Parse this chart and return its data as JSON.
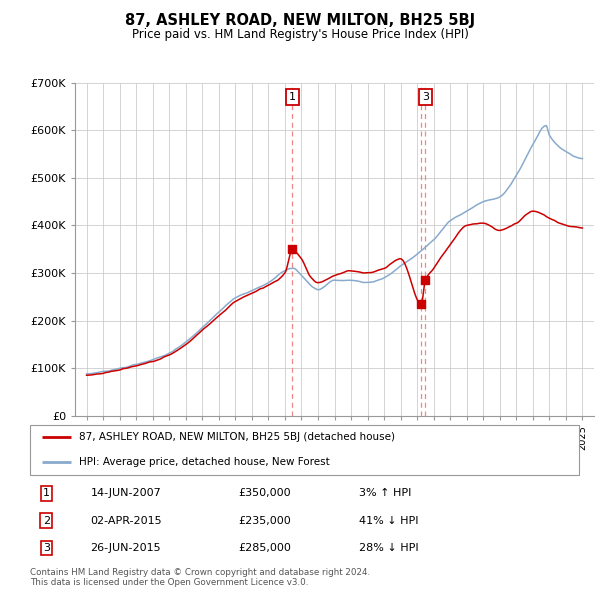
{
  "title": "87, ASHLEY ROAD, NEW MILTON, BH25 5BJ",
  "subtitle": "Price paid vs. HM Land Registry's House Price Index (HPI)",
  "ylim": [
    0,
    700000
  ],
  "ytick_vals": [
    0,
    100000,
    200000,
    300000,
    400000,
    500000,
    600000,
    700000
  ],
  "ytick_labels": [
    "£0",
    "£100K",
    "£200K",
    "£300K",
    "£400K",
    "£500K",
    "£600K",
    "£700K"
  ],
  "xlim_min": 1994.3,
  "xlim_max": 2025.7,
  "xtick_years": [
    1995,
    1996,
    1997,
    1998,
    1999,
    2000,
    2001,
    2002,
    2003,
    2004,
    2005,
    2006,
    2007,
    2008,
    2009,
    2010,
    2011,
    2012,
    2013,
    2014,
    2015,
    2016,
    2017,
    2018,
    2019,
    2020,
    2021,
    2022,
    2023,
    2024,
    2025
  ],
  "legend_line1": "87, ASHLEY ROAD, NEW MILTON, BH25 5BJ (detached house)",
  "legend_line2": "HPI: Average price, detached house, New Forest",
  "annotation_text": "Contains HM Land Registry data © Crown copyright and database right 2024.\nThis data is licensed under the Open Government Licence v3.0.",
  "transactions": [
    {
      "num": 1,
      "date": "14-JUN-2007",
      "price": "£350,000",
      "pct": "3% ↑ HPI",
      "year": 2007.45,
      "price_val": 350000,
      "show_top": true
    },
    {
      "num": 2,
      "date": "02-APR-2015",
      "price": "£235,000",
      "pct": "41% ↓ HPI",
      "year": 2015.25,
      "price_val": 235000,
      "show_top": false
    },
    {
      "num": 3,
      "date": "26-JUN-2015",
      "price": "£285,000",
      "pct": "28% ↓ HPI",
      "year": 2015.49,
      "price_val": 285000,
      "show_top": true
    }
  ],
  "red_line_color": "#cc0000",
  "blue_line_color": "#88aacc",
  "dashed_line_color": "#ee8888",
  "background_color": "#ffffff",
  "grid_color": "#cccccc",
  "hpi_keypoints": [
    [
      1995,
      88000
    ],
    [
      1996,
      93000
    ],
    [
      1997,
      100000
    ],
    [
      1998,
      108000
    ],
    [
      1999,
      118000
    ],
    [
      2000,
      132000
    ],
    [
      2001,
      155000
    ],
    [
      2002,
      185000
    ],
    [
      2003,
      218000
    ],
    [
      2004,
      248000
    ],
    [
      2005,
      263000
    ],
    [
      2006,
      280000
    ],
    [
      2007,
      305000
    ],
    [
      2007.5,
      310000
    ],
    [
      2008,
      295000
    ],
    [
      2009,
      265000
    ],
    [
      2010,
      285000
    ],
    [
      2011,
      285000
    ],
    [
      2012,
      280000
    ],
    [
      2013,
      290000
    ],
    [
      2014,
      315000
    ],
    [
      2015,
      340000
    ],
    [
      2016,
      370000
    ],
    [
      2017,
      410000
    ],
    [
      2018,
      430000
    ],
    [
      2019,
      450000
    ],
    [
      2020,
      460000
    ],
    [
      2021,
      505000
    ],
    [
      2022,
      570000
    ],
    [
      2022.8,
      610000
    ],
    [
      2023,
      590000
    ],
    [
      2024,
      555000
    ],
    [
      2025,
      540000
    ]
  ],
  "red_keypoints": [
    [
      1995,
      85000
    ],
    [
      1996,
      90000
    ],
    [
      1997,
      97000
    ],
    [
      1998,
      105000
    ],
    [
      1999,
      115000
    ],
    [
      2000,
      128000
    ],
    [
      2001,
      150000
    ],
    [
      2002,
      180000
    ],
    [
      2003,
      210000
    ],
    [
      2004,
      240000
    ],
    [
      2005,
      258000
    ],
    [
      2006,
      275000
    ],
    [
      2007,
      300000
    ],
    [
      2007.45,
      350000
    ],
    [
      2008,
      330000
    ],
    [
      2008.5,
      295000
    ],
    [
      2009,
      280000
    ],
    [
      2010,
      295000
    ],
    [
      2011,
      305000
    ],
    [
      2012,
      300000
    ],
    [
      2013,
      310000
    ],
    [
      2014,
      330000
    ],
    [
      2015.25,
      235000
    ],
    [
      2015.49,
      285000
    ],
    [
      2016,
      310000
    ],
    [
      2017,
      360000
    ],
    [
      2018,
      400000
    ],
    [
      2019,
      405000
    ],
    [
      2020,
      390000
    ],
    [
      2021,
      405000
    ],
    [
      2022,
      430000
    ],
    [
      2022.5,
      425000
    ],
    [
      2023,
      415000
    ],
    [
      2024,
      400000
    ],
    [
      2025,
      395000
    ]
  ]
}
